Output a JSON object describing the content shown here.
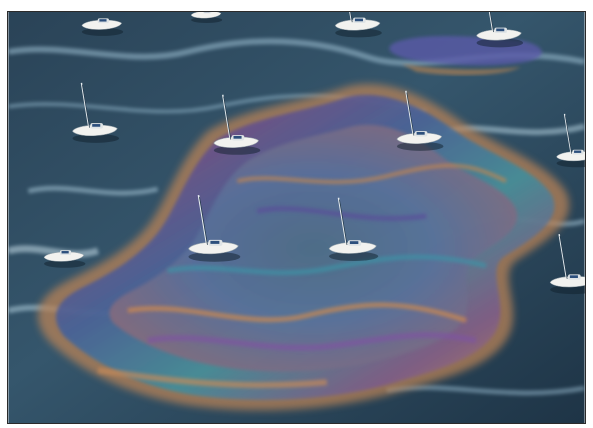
{
  "image": {
    "subject": "aerial-view-of-harbor",
    "colors": {
      "water_dark": "#243a4c",
      "water_mid": "#3a5f78",
      "water_light": "#a9c7d8",
      "sheen_blue": "#3e5f9e",
      "sheen_purple": "#6c4a8a",
      "sheen_orange": "#c9834c",
      "sheen_teal": "#3a8fa0",
      "boat_hull": "#f2f2ef",
      "boat_stripe": "#2c4f7c"
    }
  }
}
